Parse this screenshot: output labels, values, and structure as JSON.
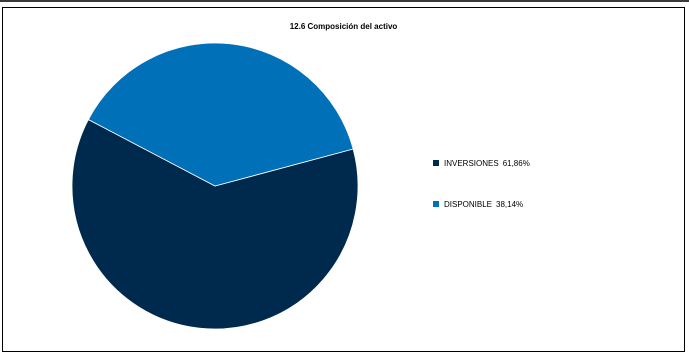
{
  "chart_data": {
    "type": "pie",
    "title": "12.6 Composición del activo",
    "slices": [
      {
        "label": "INVERSIONES",
        "value": 61.86,
        "value_text": "61,86%",
        "color": "#002a4d"
      },
      {
        "label": "DISPONIBLE",
        "value": 38.14,
        "value_text": "38,14%",
        "color": "#0070b8"
      }
    ],
    "legend_position": "right"
  }
}
